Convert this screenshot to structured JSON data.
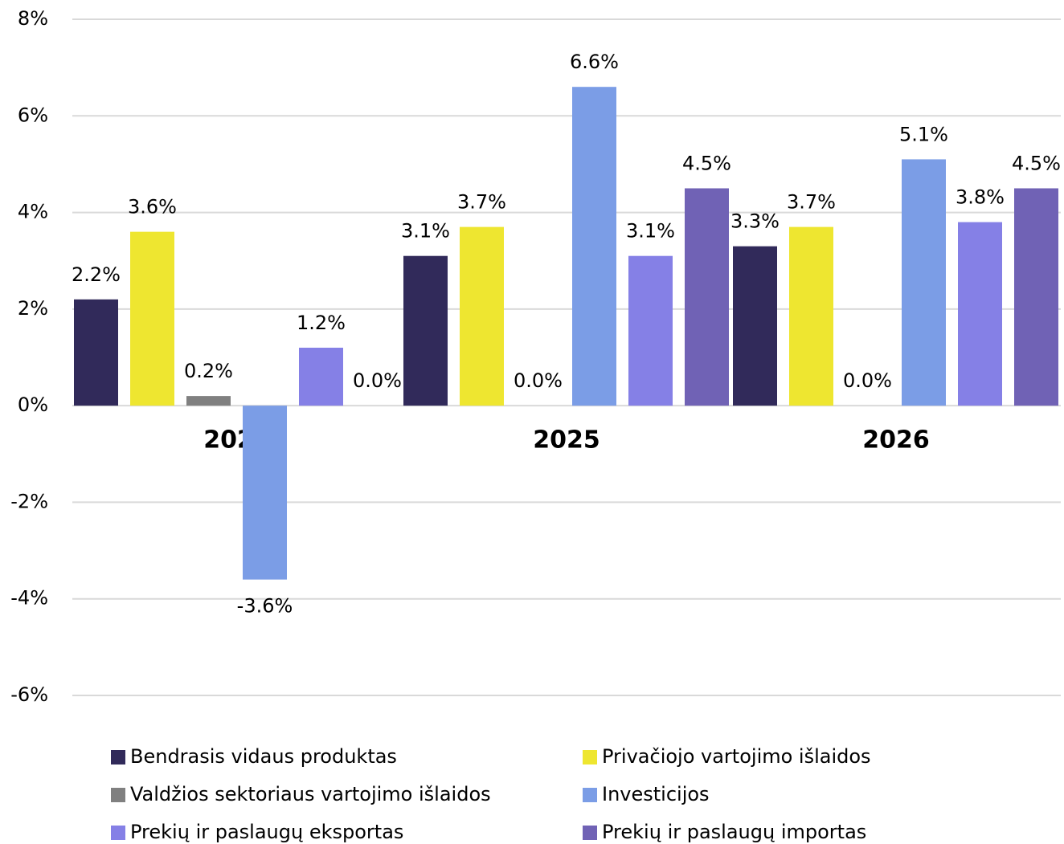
{
  "chart_data": {
    "type": "bar",
    "categories": [
      "2024",
      "2025",
      "2026"
    ],
    "series": [
      {
        "name": "Bendrasis vidaus produktas",
        "color": "#312a5a",
        "values": [
          2.2,
          3.1,
          3.3
        ],
        "value_labels": [
          "2.2%",
          "3.1%",
          "3.3%"
        ]
      },
      {
        "name": "Privačiojo vartojimo išlaidos",
        "color": "#eee630",
        "values": [
          3.6,
          3.7,
          3.7
        ],
        "value_labels": [
          "3.6%",
          "3.7%",
          "3.7%"
        ]
      },
      {
        "name": "Valdžios sektoriaus vartojimo išlaidos",
        "color": "#808080",
        "values": [
          0.2,
          0.0,
          0.0
        ],
        "value_labels": [
          "0.2%",
          "0.0%",
          "0.0%"
        ]
      },
      {
        "name": "Investicijos",
        "color": "#7b9de6",
        "values": [
          -3.6,
          6.6,
          5.1
        ],
        "value_labels": [
          "-3.6%",
          "6.6%",
          "5.1%"
        ]
      },
      {
        "name": "Prekių ir paslaugų eksportas",
        "color": "#8580e6",
        "values": [
          1.2,
          3.1,
          3.8
        ],
        "value_labels": [
          "1.2%",
          "3.1%",
          "3.8%"
        ]
      },
      {
        "name": "Prekių ir paslaugų importas",
        "color": "#7062b5",
        "values": [
          0.0,
          4.5,
          4.5
        ],
        "value_labels": [
          "0.0%",
          "4.5%",
          "4.5%"
        ]
      }
    ],
    "ylim": [
      -6,
      8
    ],
    "yticks": [
      {
        "value": -6,
        "label": "-6%"
      },
      {
        "value": -4,
        "label": "-4%"
      },
      {
        "value": -2,
        "label": "-2%"
      },
      {
        "value": 0,
        "label": "0%"
      },
      {
        "value": 2,
        "label": "2%"
      },
      {
        "value": 4,
        "label": "4%"
      },
      {
        "value": 6,
        "label": "6%"
      },
      {
        "value": 8,
        "label": "8%"
      }
    ],
    "grid": true,
    "legend": "bottom"
  }
}
